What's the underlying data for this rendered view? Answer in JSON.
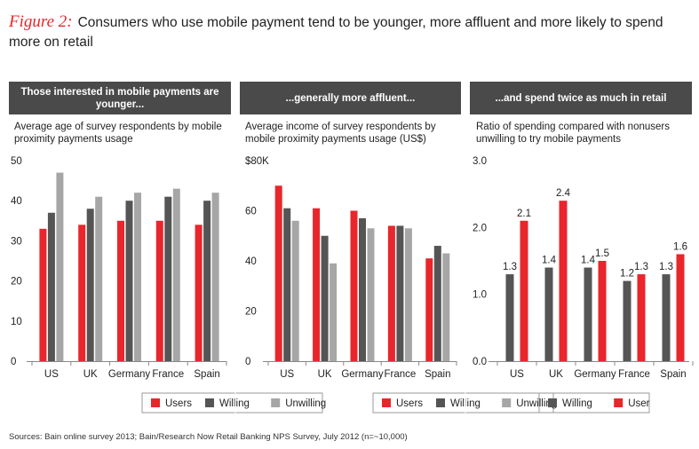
{
  "figure_label": "Figure 2:",
  "title": "Consumers who use mobile payment tend to be younger, more affluent and more likely to spend more on retail",
  "source": "Sources: Bain online survey 2013; Bain/Research Now Retail Banking NPS Survey, July 2012 (n=~10,000)",
  "colors": {
    "users": "#e8262b",
    "willing": "#555555",
    "unwilling": "#a6a6a6",
    "header": "#4a4a4a"
  },
  "chart_data": [
    {
      "type": "bar",
      "header": "Those interested in mobile payments are younger...",
      "subtitle": "Average age of survey respondents by mobile proximity payments usage",
      "categories": [
        "US",
        "UK",
        "Germany",
        "France",
        "Spain"
      ],
      "ylim": [
        0,
        50
      ],
      "yticks": [
        "0",
        "10",
        "20",
        "30",
        "40",
        "50"
      ],
      "series": [
        {
          "name": "Users",
          "values": [
            33,
            34,
            35,
            35,
            34
          ]
        },
        {
          "name": "Willing",
          "values": [
            37,
            38,
            40,
            41,
            40
          ]
        },
        {
          "name": "Unwilling",
          "values": [
            47,
            41,
            42,
            43,
            42
          ]
        }
      ],
      "show_labels": false
    },
    {
      "type": "bar",
      "header": "...generally more affluent...",
      "subtitle": "Average income of survey respondents by mobile proximity payments usage (US$)",
      "categories": [
        "US",
        "UK",
        "Germany",
        "France",
        "Spain"
      ],
      "ylim": [
        0,
        80
      ],
      "yticks": [
        "0",
        "20",
        "40",
        "60",
        "$80K"
      ],
      "series": [
        {
          "name": "Users",
          "values": [
            70,
            61,
            60,
            54,
            41
          ]
        },
        {
          "name": "Willing",
          "values": [
            61,
            50,
            57,
            54,
            46
          ]
        },
        {
          "name": "Unwilling",
          "values": [
            56,
            39,
            53,
            53,
            43
          ]
        }
      ],
      "show_labels": false
    },
    {
      "type": "bar",
      "header": "...and spend twice as much in retail",
      "subtitle": "Ratio of spending compared with nonusers unwilling to try mobile payments",
      "categories": [
        "US",
        "UK",
        "Germany",
        "France",
        "Spain"
      ],
      "ylim": [
        0,
        3
      ],
      "yticks": [
        "0.0",
        "1.0",
        "2.0",
        "3.0"
      ],
      "series": [
        {
          "name": "Willing",
          "values": [
            1.3,
            1.4,
            1.4,
            1.2,
            1.3
          ],
          "labels": [
            "1.3",
            "1.4",
            "1.4",
            "1.2",
            "1.3"
          ]
        },
        {
          "name": "User",
          "values": [
            2.1,
            2.4,
            1.5,
            1.3,
            1.6
          ],
          "labels": [
            "2.1",
            "2.4",
            "1.5",
            "1.3",
            "1.6"
          ]
        }
      ],
      "show_labels": true
    }
  ]
}
